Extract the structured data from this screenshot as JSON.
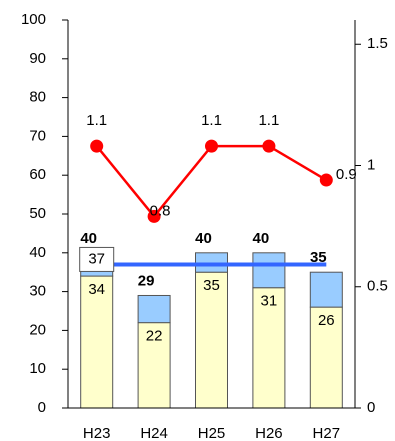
{
  "chart_data": {
    "type": "bar",
    "categories": [
      "H23",
      "H24",
      "H25",
      "H26",
      "H27"
    ],
    "series": [
      {
        "color": "#ffffcc",
        "values": [
          34,
          22,
          35,
          31,
          26
        ]
      },
      {
        "color": "#99ccff",
        "values": [
          6,
          7,
          5,
          9,
          9
        ]
      },
      {
        "type": "line",
        "axis": "y2",
        "color": "#ff0000",
        "values": [
          1.08,
          0.79,
          1.08,
          1.08,
          0.94
        ],
        "value_labels": [
          "1.1",
          "0.8",
          "1.1",
          "1.1",
          "0.9"
        ]
      }
    ],
    "totals": [
      40,
      29,
      40,
      40,
      35
    ],
    "reference_line": {
      "value": 37,
      "color": "#3366ff"
    },
    "ylim": [
      0,
      100
    ],
    "yticks": [
      0,
      10,
      20,
      30,
      40,
      50,
      60,
      70,
      80,
      90,
      100
    ],
    "y2lim": [
      0,
      1.6
    ],
    "y2ticks": [
      0,
      0.5,
      1,
      1.5
    ]
  }
}
